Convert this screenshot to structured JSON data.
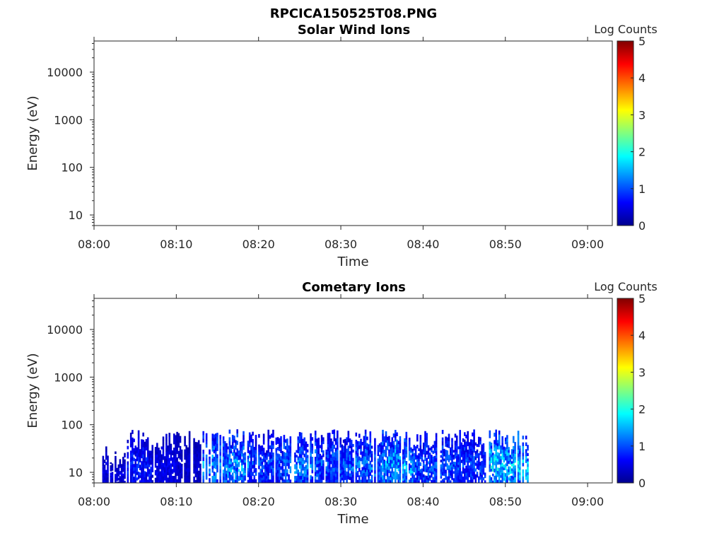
{
  "figure_title": "RPCICA150525T08.PNG",
  "chart_data": [
    {
      "type": "heatmap",
      "title": "Solar Wind Ions",
      "xlabel": "Time",
      "ylabel": "Energy (eV)",
      "y_scale": "log",
      "xlim": [
        "08:00",
        "09:03"
      ],
      "ylim": [
        6,
        45000
      ],
      "x_ticks": [
        "08:00",
        "08:10",
        "08:20",
        "08:30",
        "08:40",
        "08:50",
        "09:00"
      ],
      "y_ticks": [
        "10",
        "100",
        "1000",
        "10000"
      ],
      "colorbar": {
        "label": "Log Counts",
        "range": [
          0,
          5
        ],
        "ticks": [
          "0",
          "1",
          "2",
          "3",
          "4",
          "5"
        ],
        "colormap": "jet"
      },
      "data_present": false,
      "segments": []
    },
    {
      "type": "heatmap",
      "title": "Cometary Ions",
      "xlabel": "Time",
      "ylabel": "Energy (eV)",
      "y_scale": "log",
      "xlim": [
        "08:00",
        "09:03"
      ],
      "ylim": [
        6,
        45000
      ],
      "x_ticks": [
        "08:00",
        "08:10",
        "08:20",
        "08:30",
        "08:40",
        "08:50",
        "09:00"
      ],
      "y_ticks": [
        "10",
        "100",
        "1000",
        "10000"
      ],
      "colorbar": {
        "label": "Log Counts",
        "range": [
          0,
          5
        ],
        "ticks": [
          "0",
          "1",
          "2",
          "3",
          "4",
          "5"
        ],
        "colormap": "jet"
      },
      "data_present": true,
      "energy_range": [
        6,
        80
      ],
      "segments": [
        {
          "start": "08:01",
          "end": "08:04",
          "max_energy": 35,
          "log_counts": 0.5
        },
        {
          "start": "08:04",
          "end": "08:07",
          "max_energy": 80,
          "log_counts": 0.8
        },
        {
          "start": "08:07",
          "end": "08:10",
          "max_energy": 80,
          "log_counts": 0.6
        },
        {
          "start": "08:10",
          "end": "08:13",
          "max_energy": 80,
          "log_counts": 0.4
        },
        {
          "start": "08:13",
          "end": "08:19",
          "max_energy": 80,
          "log_counts": 1.4
        },
        {
          "start": "08:19",
          "end": "08:23",
          "max_energy": 80,
          "log_counts": 1.0
        },
        {
          "start": "08:23",
          "end": "08:27",
          "max_energy": 80,
          "log_counts": 1.3
        },
        {
          "start": "08:27",
          "end": "08:31",
          "max_energy": 80,
          "log_counts": 1.1
        },
        {
          "start": "08:31",
          "end": "08:35",
          "max_energy": 80,
          "log_counts": 1.2
        },
        {
          "start": "08:35",
          "end": "08:39",
          "max_energy": 80,
          "log_counts": 1.5
        },
        {
          "start": "08:39",
          "end": "08:44",
          "max_energy": 80,
          "log_counts": 1.1
        },
        {
          "start": "08:44",
          "end": "08:48",
          "max_energy": 80,
          "log_counts": 1.0
        },
        {
          "start": "08:48",
          "end": "08:53",
          "max_energy": 80,
          "log_counts": 1.7
        }
      ]
    }
  ]
}
